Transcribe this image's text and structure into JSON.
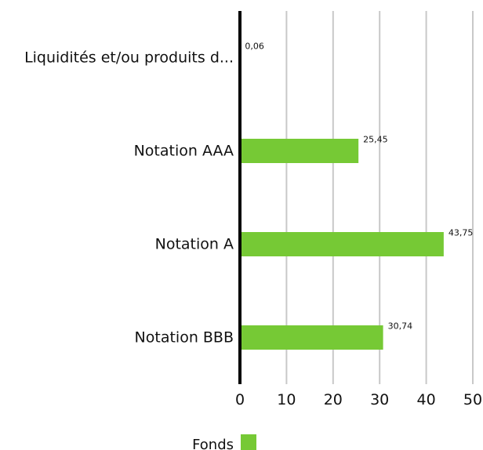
{
  "chart_data": {
    "type": "bar",
    "orientation": "horizontal",
    "categories": [
      "Liquidités et/ou produits d...",
      "Notation AAA",
      "Notation A",
      "Notation BBB"
    ],
    "series": [
      {
        "name": "Fonds",
        "values": [
          0.06,
          25.45,
          43.75,
          30.74
        ],
        "value_labels": [
          "0,06",
          "25,45",
          "43,75",
          "30,74"
        ],
        "color": "#76c935"
      }
    ],
    "xlim": [
      0,
      50
    ],
    "x_ticks": [
      0,
      10,
      20,
      30,
      40,
      50
    ],
    "x_tick_labels": [
      "0",
      "10",
      "20",
      "30",
      "40",
      "50"
    ],
    "grid": "vertical",
    "legend_position": "bottom"
  },
  "colors": {
    "bar": "#76c935",
    "grid": "#c8c8c8",
    "axis": "#000000",
    "text": "#111111"
  }
}
